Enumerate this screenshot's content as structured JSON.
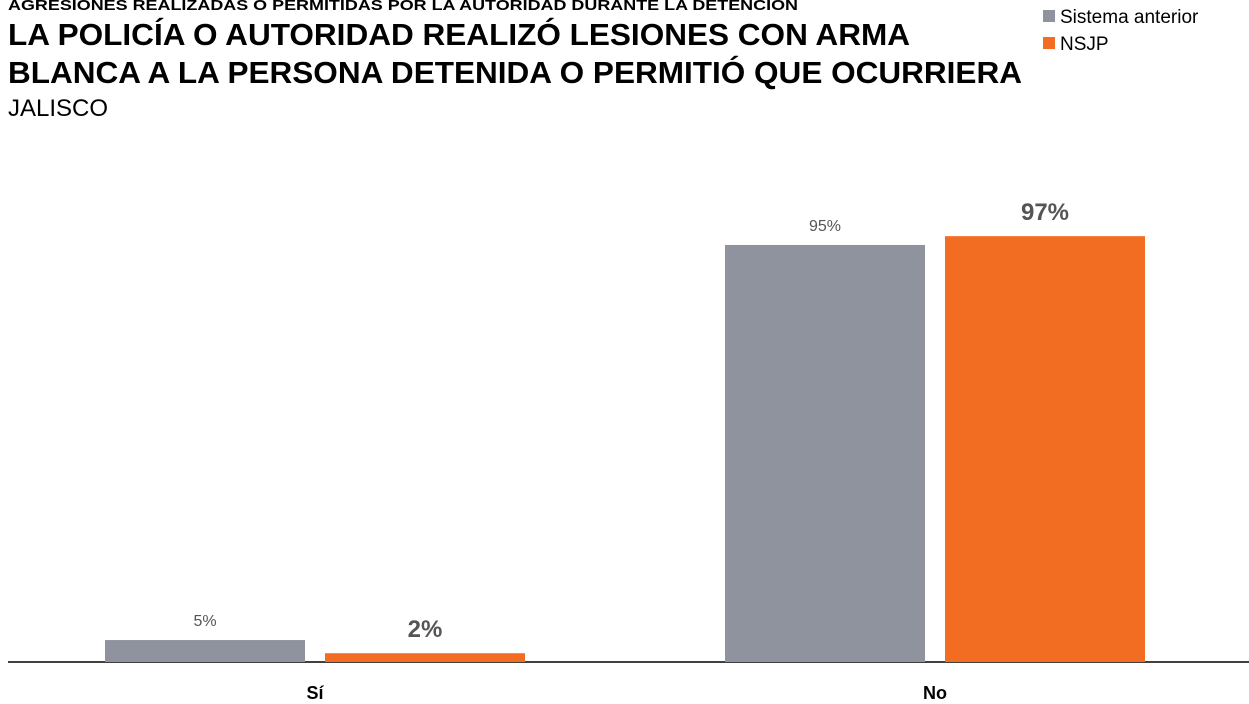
{
  "chart_data": {
    "type": "bar",
    "subtitle": "AGRESIONES REALIZADAS O PERMITIDAS POR LA AUTORIDAD DURANTE LA DETENCIÓN",
    "title": [
      "LA POLICÍA O AUTORIDAD REALIZÓ LESIONES CON ARMA",
      "BLANCA A LA PERSONA DETENIDA O PERMITIÓ QUE OCURRIERA"
    ],
    "region": "JALISCO",
    "categories": [
      "Sí",
      "No"
    ],
    "series": [
      {
        "name": "Sistema anterior",
        "color": "#8f939e",
        "values": [
          5,
          95
        ],
        "value_labels": [
          "5%",
          "95%"
        ]
      },
      {
        "name": "NSJP",
        "color": "#f26c22",
        "values": [
          2,
          97
        ],
        "value_labels": [
          "2%",
          "97%"
        ]
      }
    ],
    "legend": "top-right"
  }
}
